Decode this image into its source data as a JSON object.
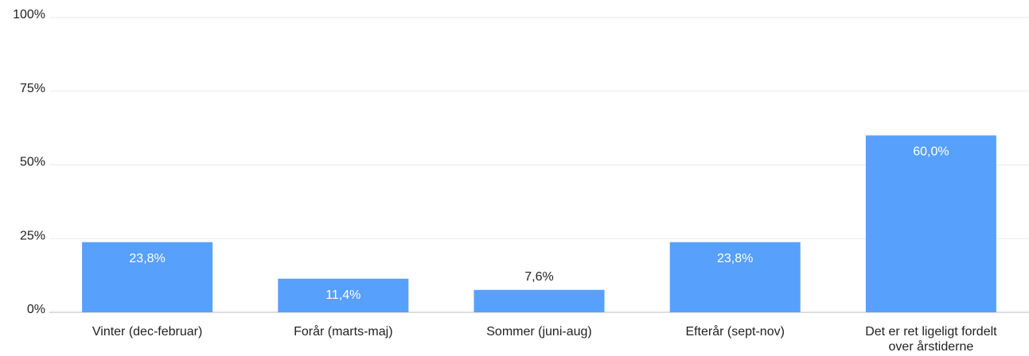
{
  "chart_data": {
    "type": "bar",
    "categories": [
      "Vinter (dec-februar)",
      "Forår (marts-maj)",
      "Sommer (juni-aug)",
      "Efterår (sept-nov)",
      "Det er ret ligeligt fordelt over årstiderne"
    ],
    "values": [
      23.8,
      11.4,
      7.6,
      23.8,
      60.0
    ],
    "value_labels": [
      "23,8%",
      "11,4%",
      "7,6%",
      "23,8%",
      "60,0%"
    ],
    "color": "#57a0fc",
    "ylim": [
      0,
      100
    ],
    "yticks": [
      {
        "value": 0,
        "label": "0%"
      },
      {
        "value": 25,
        "label": "25%"
      },
      {
        "value": 50,
        "label": "50%"
      },
      {
        "value": 75,
        "label": "75%"
      },
      {
        "value": 100,
        "label": "100%"
      }
    ],
    "grid": true
  }
}
